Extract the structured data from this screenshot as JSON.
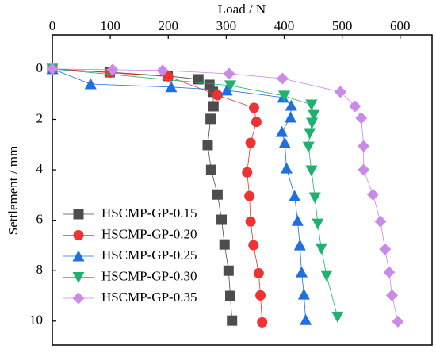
{
  "chart_data": {
    "type": "line",
    "x_label": "Load / N",
    "y_label": "Settlement / mm",
    "xlim": [
      0,
      655
    ],
    "xticks": [
      0,
      100,
      200,
      300,
      400,
      500,
      600
    ],
    "ylim": [
      -1.35,
      10.95
    ],
    "yticks": [
      0,
      2,
      4,
      6,
      8,
      10
    ],
    "y_inverted": true,
    "x_axis_position": "top",
    "legend": "lower-left",
    "series": [
      {
        "name": "HSCMP-GP-0.15",
        "color": "#4d4d4d",
        "marker": "square",
        "x": [
          0,
          99,
          199,
          252,
          271,
          277,
          278,
          273,
          268,
          274,
          285,
          292,
          297,
          304,
          307,
          310
        ],
        "values": [
          0,
          0.13,
          0.28,
          0.41,
          0.63,
          0.91,
          1.48,
          1.98,
          3.02,
          4.0,
          4.98,
          5.98,
          6.96,
          8.0,
          9.0,
          9.98
        ]
      },
      {
        "name": "HSCMP-GP-0.20",
        "color": "#f03232",
        "marker": "circle",
        "x": [
          0,
          100,
          200,
          285,
          348,
          352,
          342,
          336,
          340,
          342,
          347,
          356,
          359,
          362
        ],
        "values": [
          0,
          0.15,
          0.3,
          1.04,
          1.54,
          2.1,
          2.93,
          4.1,
          5.04,
          6.05,
          6.99,
          8.1,
          8.98,
          10.05
        ]
      },
      {
        "name": "HSCMP-GP-0.25",
        "color": "#1f6fe0",
        "marker": "triangle-up",
        "x": [
          0,
          66,
          205,
          301,
          398,
          412,
          411,
          396,
          401,
          404,
          418,
          423,
          427,
          430,
          434,
          437
        ],
        "values": [
          0,
          0.6,
          0.72,
          0.85,
          1.13,
          1.45,
          1.92,
          2.49,
          2.93,
          3.94,
          5.04,
          6.02,
          6.99,
          8.06,
          8.94,
          9.95
        ]
      },
      {
        "name": "HSCMP-GP-0.30",
        "color": "#20b070",
        "marker": "triangle-down",
        "x": [
          0,
          307,
          400,
          447,
          451,
          448,
          444,
          442,
          447,
          453,
          458,
          464,
          473,
          492
        ],
        "values": [
          0,
          0.66,
          1.07,
          1.42,
          1.83,
          2.14,
          2.55,
          3.09,
          4.03,
          5.1,
          6.14,
          7.12,
          8.19,
          9.83
        ]
      },
      {
        "name": "HSCMP-GP-0.35",
        "color": "#c98aea",
        "marker": "diamond",
        "x": [
          0,
          104,
          190,
          305,
          397,
          497,
          522,
          533,
          537,
          537,
          553,
          566,
          574,
          581,
          586,
          596
        ],
        "values": [
          0,
          0.03,
          0.06,
          0.19,
          0.38,
          0.91,
          1.48,
          1.95,
          3.06,
          4.0,
          4.98,
          6.05,
          7.15,
          8.06,
          8.98,
          10.02
        ]
      }
    ]
  }
}
